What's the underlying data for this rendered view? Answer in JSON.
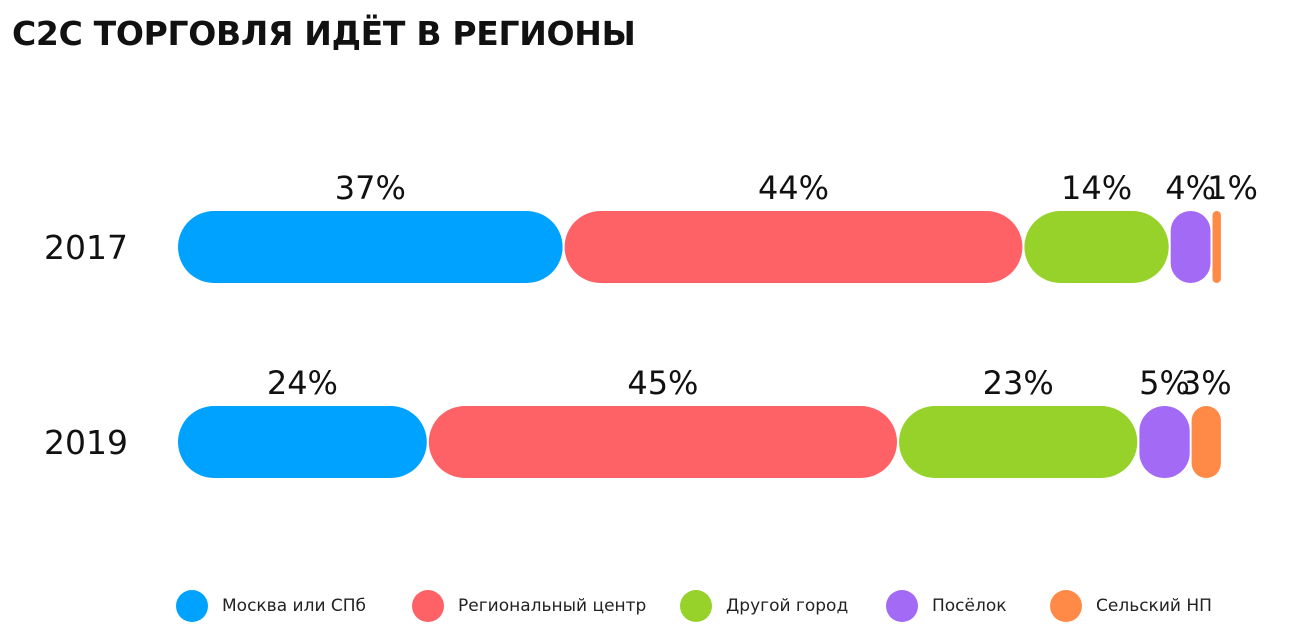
{
  "title": "C2C ТОРГОВЛЯ ИДЁТ В РЕГИОНЫ",
  "chart_data": {
    "type": "bar",
    "stacked": true,
    "orientation": "horizontal",
    "title": "C2C ТОРГОВЛЯ ИДЁТ В РЕГИОНЫ",
    "categories": [
      "2017",
      "2019"
    ],
    "series": [
      {
        "name": "Москва или СПб",
        "color": "#00A2FF",
        "values": [
          37,
          24
        ],
        "labels": [
          "37%",
          "24%"
        ]
      },
      {
        "name": "Региональный центр",
        "color": "#FF6266",
        "values": [
          44,
          45
        ],
        "labels": [
          "44%",
          "45%"
        ]
      },
      {
        "name": "Другой город",
        "color": "#97D22B",
        "values": [
          14,
          23
        ],
        "labels": [
          "14%",
          "23%"
        ]
      },
      {
        "name": "Посёлок",
        "color": "#A36BF5",
        "values": [
          4,
          5
        ],
        "labels": [
          "4%",
          "5%"
        ]
      },
      {
        "name": "Сельский НП",
        "color": "#FF8A47",
        "values": [
          1,
          3
        ],
        "labels": [
          "1%",
          "3%"
        ]
      }
    ],
    "legend_position": "bottom",
    "grid": false,
    "axes_visible": false
  }
}
